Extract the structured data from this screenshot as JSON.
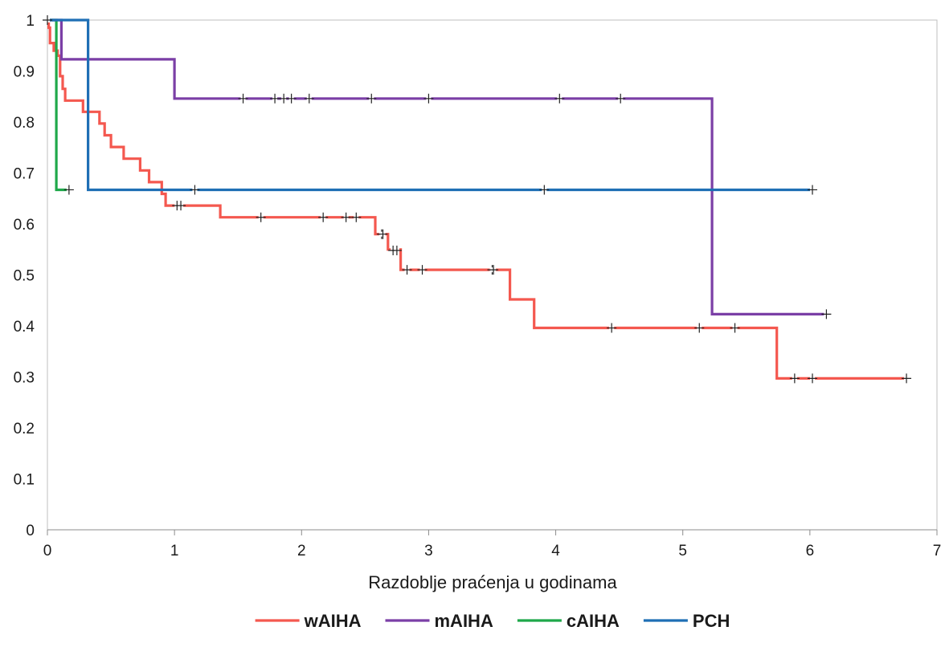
{
  "chart_data": {
    "type": "line",
    "title": "",
    "xlabel": "Razdoblje praćenja u godinama",
    "ylabel": "",
    "xlim": [
      0,
      7
    ],
    "ylim": [
      0,
      1
    ],
    "x_ticks": [
      "0",
      "1",
      "2",
      "3",
      "4",
      "5",
      "6",
      "7"
    ],
    "y_ticks": [
      "0",
      "0.1",
      "0.2",
      "0.3",
      "0.4",
      "0.5",
      "0.6",
      "0.7",
      "0.8",
      "0.9",
      "1"
    ],
    "grid": false,
    "legend_position": "bottom",
    "censor_marker": "+",
    "series": [
      {
        "name": "wAIHA",
        "color": "#f4584f",
        "steps": [
          [
            0,
            1
          ],
          [
            0.01,
            0.985
          ],
          [
            0.02,
            0.955
          ],
          [
            0.05,
            0.94
          ],
          [
            0.08,
            0.93
          ],
          [
            0.1,
            0.89
          ],
          [
            0.12,
            0.865
          ],
          [
            0.14,
            0.842
          ],
          [
            0.28,
            0.82
          ],
          [
            0.41,
            0.797
          ],
          [
            0.45,
            0.774
          ],
          [
            0.5,
            0.751
          ],
          [
            0.6,
            0.728
          ],
          [
            0.73,
            0.705
          ],
          [
            0.8,
            0.682
          ],
          [
            0.9,
            0.659
          ],
          [
            0.93,
            0.636
          ],
          [
            1.36,
            0.613
          ],
          [
            2.58,
            0.58
          ],
          [
            2.68,
            0.55
          ],
          [
            2.78,
            0.51
          ],
          [
            3.64,
            0.452
          ],
          [
            3.83,
            0.396
          ],
          [
            5.74,
            0.297
          ],
          [
            6.76,
            0.297
          ]
        ],
        "censored": [
          [
            1.02,
            0.636
          ],
          [
            1.05,
            0.636
          ],
          [
            1.68,
            0.613
          ],
          [
            2.17,
            0.613
          ],
          [
            2.35,
            0.613
          ],
          [
            2.43,
            0.613
          ],
          [
            2.63,
            0.58
          ],
          [
            2.64,
            0.58
          ],
          [
            2.72,
            0.548
          ],
          [
            2.75,
            0.548
          ],
          [
            2.83,
            0.51
          ],
          [
            2.95,
            0.51
          ],
          [
            3.5,
            0.51
          ],
          [
            3.51,
            0.51
          ],
          [
            4.44,
            0.396
          ],
          [
            5.13,
            0.396
          ],
          [
            5.41,
            0.396
          ],
          [
            5.88,
            0.297
          ],
          [
            6.02,
            0.297
          ],
          [
            6.76,
            0.297
          ]
        ]
      },
      {
        "name": "mAIHA",
        "color": "#7b3fa6",
        "steps": [
          [
            0,
            1
          ],
          [
            0.11,
            0.923
          ],
          [
            1.0,
            0.846
          ],
          [
            5.23,
            0.423
          ],
          [
            6.13,
            0.423
          ]
        ],
        "censored": [
          [
            1.54,
            0.846
          ],
          [
            1.79,
            0.846
          ],
          [
            1.86,
            0.846
          ],
          [
            1.92,
            0.846
          ],
          [
            2.06,
            0.846
          ],
          [
            2.55,
            0.846
          ],
          [
            3.0,
            0.846
          ],
          [
            4.03,
            0.846
          ],
          [
            4.51,
            0.846
          ],
          [
            6.13,
            0.423
          ]
        ]
      },
      {
        "name": "cAIHA",
        "color": "#1fa84a",
        "steps": [
          [
            0,
            1
          ],
          [
            0.07,
            0.667
          ],
          [
            0.17,
            0.667
          ]
        ],
        "censored": [
          [
            0.17,
            0.667
          ]
        ]
      },
      {
        "name": "PCH",
        "color": "#1f6fb5",
        "steps": [
          [
            0,
            1
          ],
          [
            0.32,
            0.667
          ],
          [
            6.02,
            0.667
          ]
        ],
        "censored": [
          [
            0,
            1
          ],
          [
            1.16,
            0.667
          ],
          [
            3.91,
            0.667
          ],
          [
            6.02,
            0.667
          ]
        ]
      }
    ]
  }
}
